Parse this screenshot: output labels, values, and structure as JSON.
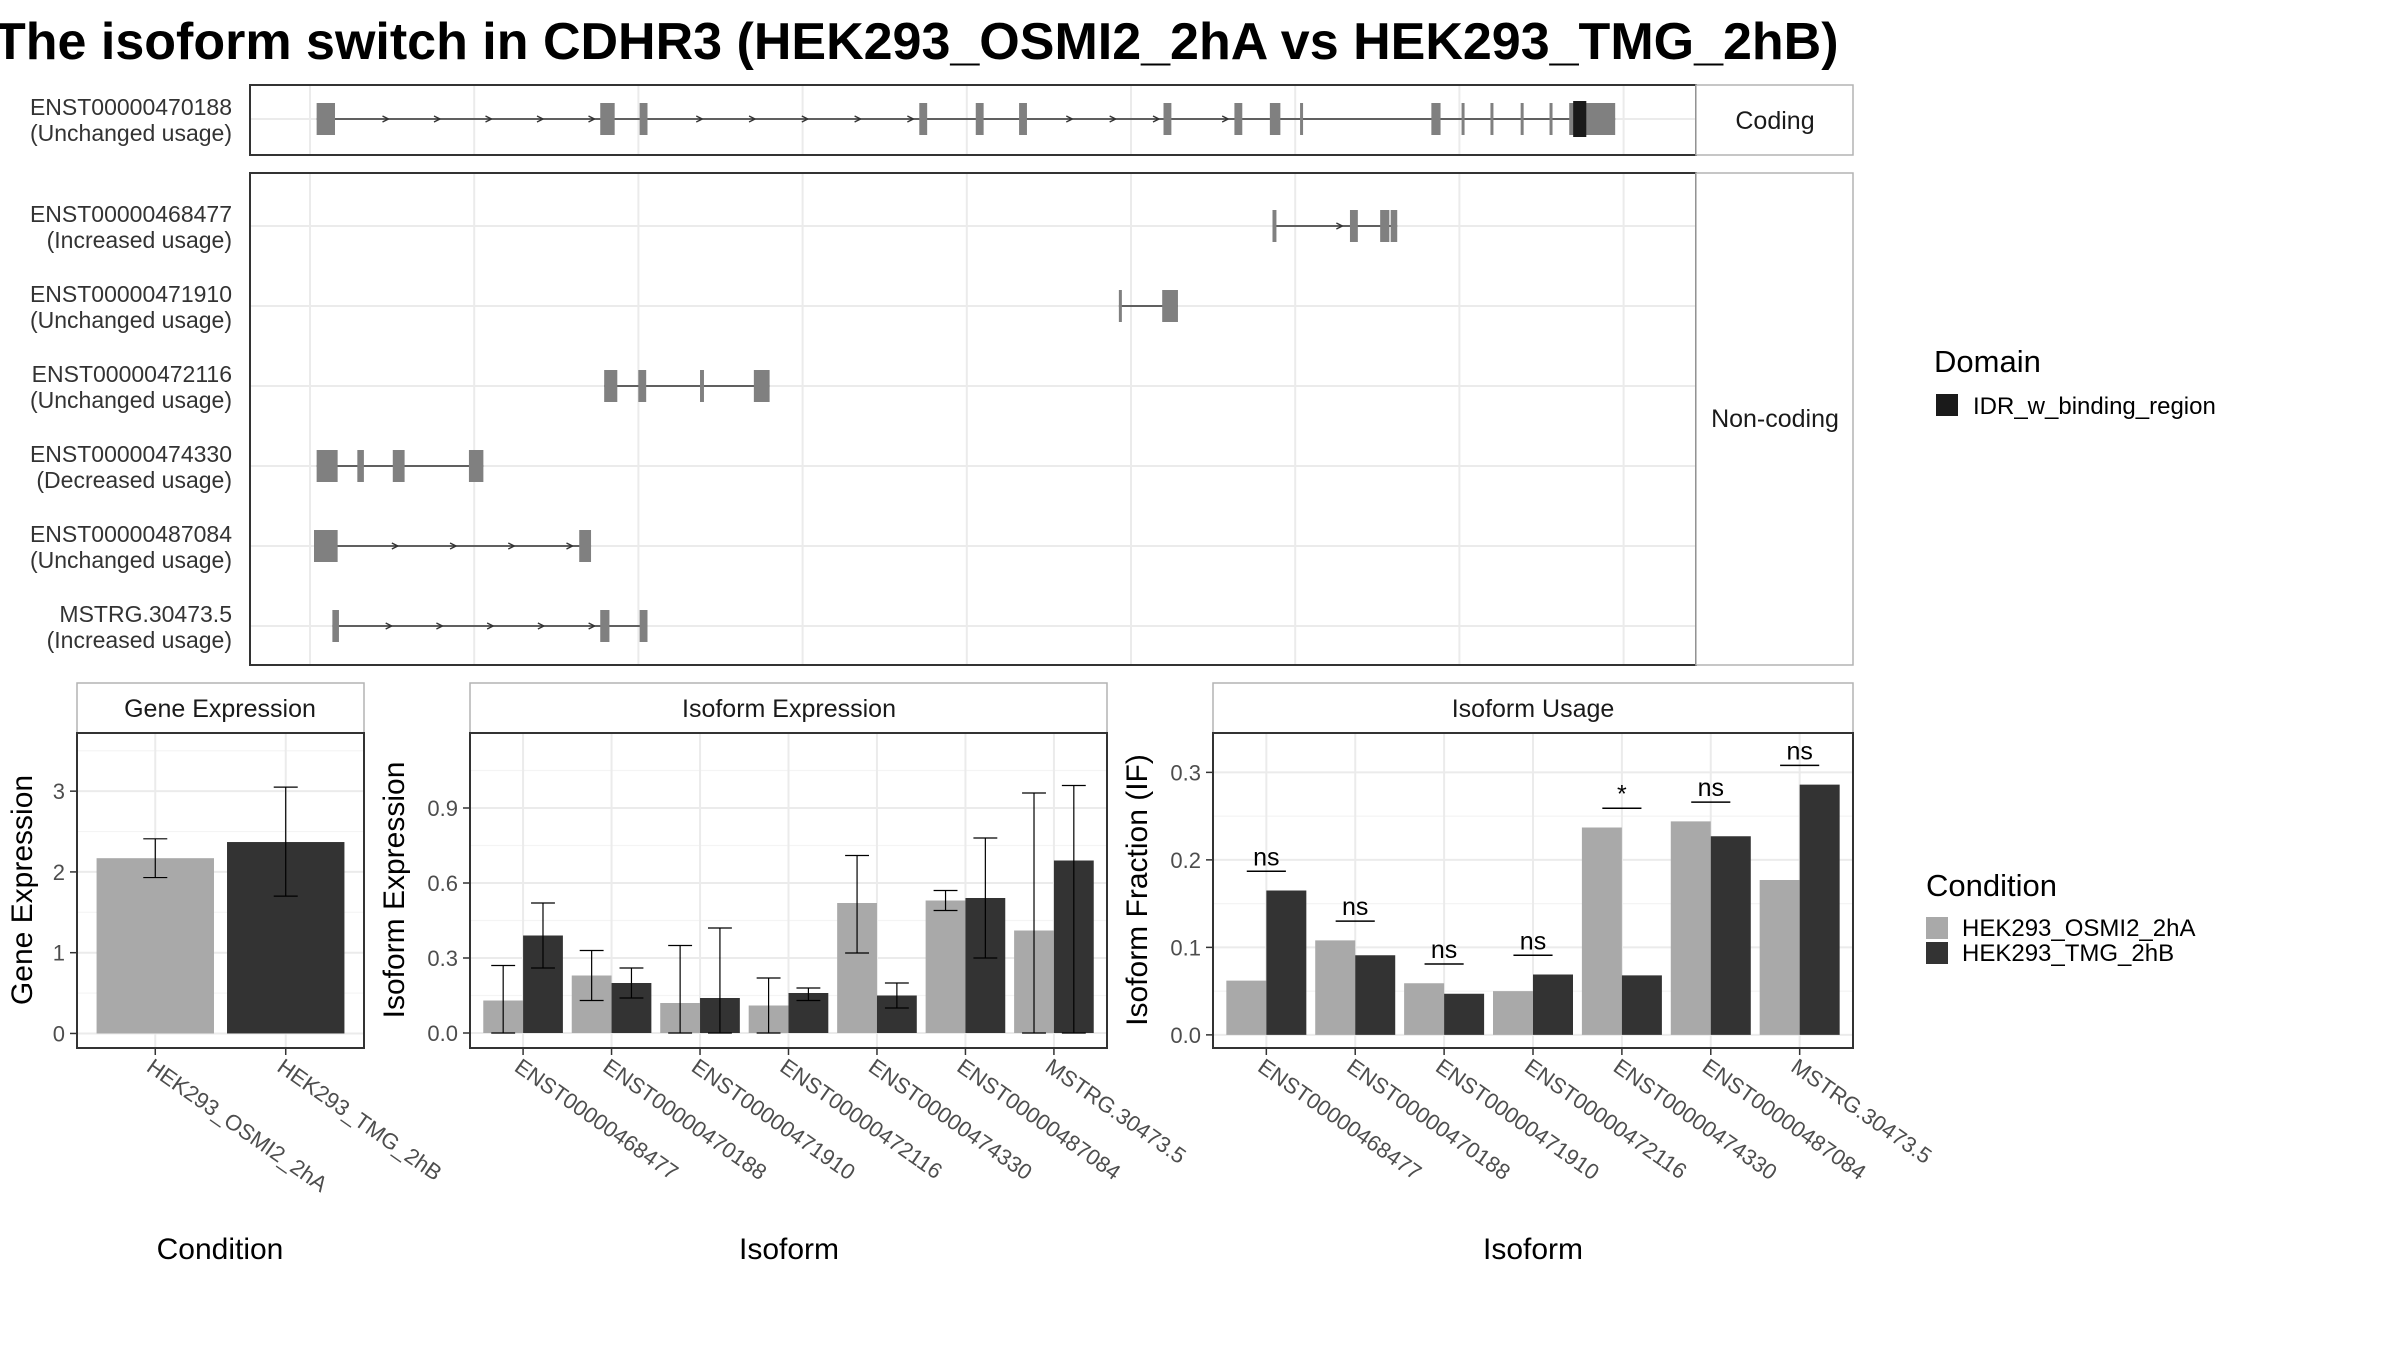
{
  "title": "The isoform switch in CDHR3 (HEK293_OSMI2_2hA vs HEK293_TMG_2hB)",
  "colors": {
    "exon": "#808080",
    "domain": "#1a1a1a",
    "condition_a": "#a9a9a9",
    "condition_b": "#333333",
    "grid": "#ebebeb",
    "border": "#333333",
    "strip_border": "#b3b3b3"
  },
  "structure": {
    "strips": {
      "coding": "Coding",
      "noncoding": "Non-coding"
    },
    "coord_range": [
      0,
      100
    ],
    "coding": [
      {
        "id": "ENST00000470188",
        "usage": "(Unchanged usage)",
        "exons": [
          [
            0.2,
            1.6
          ],
          [
            21.8,
            22.9
          ],
          [
            24.8,
            25.4
          ],
          [
            46.1,
            46.7
          ],
          [
            50.4,
            51.0
          ],
          [
            53.7,
            54.3
          ],
          [
            64.7,
            65.3
          ],
          [
            70.1,
            70.7
          ],
          [
            72.8,
            73.6
          ],
          [
            75.1,
            75.3
          ],
          [
            85.1,
            85.8
          ],
          [
            87.4,
            87.6
          ],
          [
            89.6,
            89.8
          ],
          [
            91.9,
            92.1
          ],
          [
            94.1,
            94.3
          ],
          [
            95.6,
            96.2
          ],
          [
            96.2,
            99.1
          ]
        ],
        "arrow_segments": [
          [
            1.6,
            21.8
          ],
          [
            25.4,
            46.1
          ],
          [
            54.3,
            64.7
          ],
          [
            65.3,
            70.1
          ]
        ],
        "domains": [
          {
            "name": "IDR_w_binding_region",
            "range": [
              95.9,
              96.9
            ]
          }
        ]
      }
    ],
    "noncoding": [
      {
        "id": "ENST00000468477",
        "usage": "(Increased usage)",
        "exons": [
          [
            73.0,
            73.3
          ],
          [
            78.9,
            79.5
          ],
          [
            81.2,
            81.9
          ],
          [
            82.0,
            82.5
          ]
        ],
        "arrow_segments": [
          [
            73.3,
            78.9
          ]
        ]
      },
      {
        "id": "ENST00000471910",
        "usage": "(Unchanged usage)",
        "exons": [
          [
            61.3,
            61.5
          ],
          [
            64.6,
            65.8
          ]
        ],
        "arrow_segments": []
      },
      {
        "id": "ENST00000472116",
        "usage": "(Unchanged usage)",
        "exons": [
          [
            22.1,
            23.1
          ],
          [
            24.7,
            25.3
          ],
          [
            29.4,
            29.7
          ],
          [
            33.5,
            34.7
          ]
        ],
        "arrow_segments": []
      },
      {
        "id": "ENST00000474330",
        "usage": "(Decreased usage)",
        "exons": [
          [
            0.2,
            1.8
          ],
          [
            3.3,
            3.8
          ],
          [
            6.0,
            6.9
          ],
          [
            11.8,
            12.9
          ]
        ],
        "arrow_segments": []
      },
      {
        "id": "ENST00000487084",
        "usage": "(Unchanged usage)",
        "exons": [
          [
            0.0,
            1.8
          ],
          [
            20.2,
            21.1
          ]
        ],
        "arrow_segments": [
          [
            1.8,
            20.2
          ]
        ]
      },
      {
        "id": "MSTRG.30473.5",
        "usage": "(Increased usage)",
        "exons": [
          [
            1.4,
            1.9
          ],
          [
            21.8,
            22.5
          ],
          [
            24.8,
            25.4
          ]
        ],
        "arrow_segments": [
          [
            1.9,
            21.8
          ]
        ]
      }
    ]
  },
  "legend_domain": {
    "title": "Domain",
    "items": [
      {
        "label": "IDR_w_binding_region",
        "color": "#1a1a1a"
      }
    ]
  },
  "legend_condition": {
    "title": "Condition",
    "items": [
      {
        "label": "HEK293_OSMI2_2hA",
        "color": "#a9a9a9"
      },
      {
        "label": "HEK293_TMG_2hB",
        "color": "#333333"
      }
    ]
  },
  "chart_data": [
    {
      "type": "bar",
      "panel": "Gene Expression",
      "categories": [
        "HEK293_OSMI2_2hA",
        "HEK293_TMG_2hB"
      ],
      "values": [
        2.17,
        2.37
      ],
      "errors": [
        [
          1.93,
          2.41
        ],
        [
          1.7,
          3.05
        ]
      ],
      "xlabel": "Condition",
      "ylabel": "Gene Expression",
      "ylim": [
        -0.18,
        3.72
      ],
      "yticks": [
        0,
        1,
        2,
        3
      ]
    },
    {
      "type": "bar",
      "panel": "Isoform Expression",
      "categories": [
        "ENST00000468477",
        "ENST00000470188",
        "ENST00000471910",
        "ENST00000472116",
        "ENST00000474330",
        "ENST00000487084",
        "MSTRG.30473.5"
      ],
      "series": [
        {
          "name": "HEK293_OSMI2_2hA",
          "values": [
            0.13,
            0.23,
            0.12,
            0.11,
            0.52,
            0.53,
            0.41
          ],
          "errors": [
            [
              0.0,
              0.27
            ],
            [
              0.13,
              0.33
            ],
            [
              0.0,
              0.35
            ],
            [
              0.0,
              0.22
            ],
            [
              0.32,
              0.71
            ],
            [
              0.49,
              0.57
            ],
            [
              0.0,
              0.96
            ]
          ]
        },
        {
          "name": "HEK293_TMG_2hB",
          "values": [
            0.39,
            0.2,
            0.14,
            0.16,
            0.15,
            0.54,
            0.69
          ],
          "errors": [
            [
              0.26,
              0.52
            ],
            [
              0.14,
              0.26
            ],
            [
              0.0,
              0.42
            ],
            [
              0.13,
              0.18
            ],
            [
              0.1,
              0.2
            ],
            [
              0.3,
              0.78
            ],
            [
              0.0,
              0.99
            ]
          ]
        }
      ],
      "xlabel": "Isoform",
      "ylabel": "Isoform Expression",
      "ylim": [
        -0.06,
        1.2
      ],
      "yticks": [
        0.0,
        0.3,
        0.6,
        0.9
      ]
    },
    {
      "type": "bar",
      "panel": "Isoform Usage",
      "categories": [
        "ENST00000468477",
        "ENST00000470188",
        "ENST00000471910",
        "ENST00000472116",
        "ENST00000474330",
        "ENST00000487084",
        "MSTRG.30473.5"
      ],
      "series": [
        {
          "name": "HEK293_OSMI2_2hA",
          "values": [
            0.062,
            0.108,
            0.059,
            0.05,
            0.237,
            0.244,
            0.177
          ]
        },
        {
          "name": "HEK293_TMG_2hB",
          "values": [
            0.165,
            0.091,
            0.047,
            0.069,
            0.068,
            0.227,
            0.286
          ]
        }
      ],
      "significance": [
        "ns",
        "ns",
        "ns",
        "ns",
        "*",
        "ns",
        "ns"
      ],
      "xlabel": "Isoform",
      "ylabel": "Isoform Fraction (IF)",
      "ylim": [
        -0.015,
        0.345
      ],
      "yticks": [
        0.0,
        0.1,
        0.2,
        0.3
      ]
    }
  ]
}
